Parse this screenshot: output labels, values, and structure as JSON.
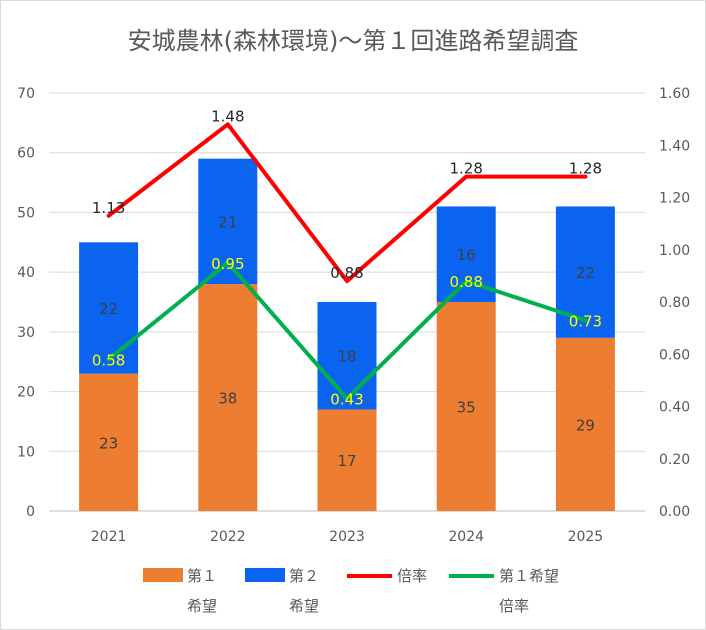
{
  "chart_data": {
    "type": "bar",
    "title": "安城農林(森林環境)～第１回進路希望調査",
    "categories": [
      "2021",
      "2022",
      "2023",
      "2024",
      "2025"
    ],
    "stacked": true,
    "series": [
      {
        "name": "第１希望",
        "type": "bar",
        "axis": "left",
        "color": "#ed7d31",
        "values": [
          23,
          38,
          17,
          35,
          29
        ]
      },
      {
        "name": "第２希望",
        "type": "bar",
        "axis": "left",
        "color": "#0a64f0",
        "values": [
          22,
          21,
          18,
          16,
          22
        ]
      },
      {
        "name": "倍率",
        "type": "line",
        "axis": "right",
        "color": "#ff0000",
        "values": [
          1.13,
          1.48,
          0.88,
          1.28,
          1.28
        ],
        "labels": [
          "1.13",
          "1.48",
          "0.88",
          "1.28",
          "1.28"
        ]
      },
      {
        "name": "第１希望倍率",
        "type": "line",
        "axis": "right",
        "color": "#00b050",
        "values": [
          0.58,
          0.95,
          0.43,
          0.88,
          0.73
        ],
        "labels": [
          "0.58",
          "0.95",
          "0.43",
          "0.88",
          "0.73"
        ]
      }
    ],
    "y_left": {
      "ylim": [
        0,
        70
      ],
      "ticks": [
        "0",
        "10",
        "20",
        "30",
        "40",
        "50",
        "60",
        "70"
      ]
    },
    "y_right": {
      "ylim": [
        0,
        1.6
      ],
      "ticks": [
        "0.00",
        "0.20",
        "0.40",
        "0.60",
        "0.80",
        "1.00",
        "1.20",
        "1.40",
        "1.60"
      ]
    },
    "grid": true,
    "legend": {
      "position": "bottom",
      "items": [
        {
          "line1": "第１",
          "line2": "希望",
          "kind": "bar",
          "color": "#ed7d31"
        },
        {
          "line1": "第２",
          "line2": "希望",
          "kind": "bar",
          "color": "#0a64f0"
        },
        {
          "line1": "倍率",
          "line2": "",
          "kind": "line",
          "color": "#ff0000"
        },
        {
          "line1": "第１希望",
          "line2": "倍率",
          "kind": "line",
          "color": "#00b050"
        }
      ]
    }
  }
}
